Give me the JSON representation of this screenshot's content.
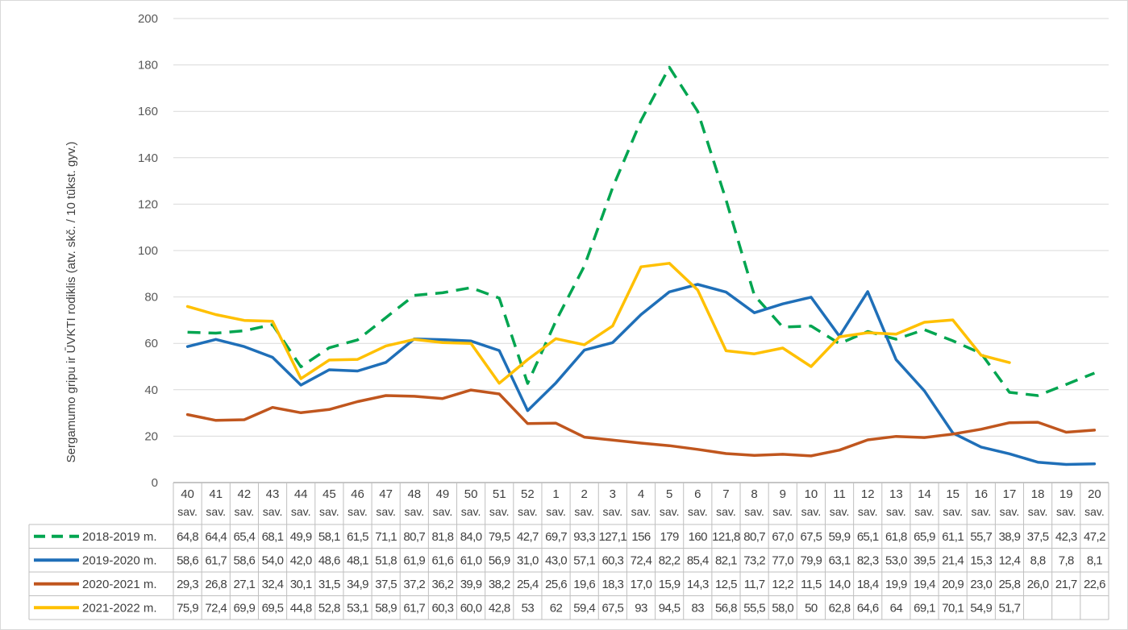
{
  "chart_data": {
    "type": "line",
    "title": "",
    "xlabel": "",
    "ylabel": "Sergamumo gripu ir ŪVKTI rodiklis (atv. skč. / 10 tūkst. gyv.)",
    "ylim": [
      0,
      200
    ],
    "yticks": [
      "0",
      "20",
      "40",
      "60",
      "80",
      "100",
      "120",
      "140",
      "160",
      "180",
      "200"
    ],
    "grid": true,
    "legend": "data-table",
    "week_suffix": "sav.",
    "categories": [
      "40",
      "41",
      "42",
      "43",
      "44",
      "45",
      "46",
      "47",
      "48",
      "49",
      "50",
      "51",
      "52",
      "1",
      "2",
      "3",
      "4",
      "5",
      "6",
      "7",
      "8",
      "9",
      "10",
      "11",
      "12",
      "13",
      "14",
      "15",
      "16",
      "17",
      "18",
      "19",
      "20"
    ],
    "series": [
      {
        "name": "2018-2019 m.",
        "color": "#00A550",
        "dash": "dashed",
        "values": [
          64.8,
          64.4,
          65.4,
          68.1,
          49.9,
          58.1,
          61.5,
          71.1,
          80.7,
          81.8,
          84.0,
          79.5,
          42.7,
          69.7,
          93.3,
          127.1,
          156,
          179,
          160,
          121.8,
          80.7,
          67.0,
          67.5,
          59.9,
          65.1,
          61.8,
          65.9,
          61.1,
          55.7,
          38.9,
          37.5,
          42.3,
          47.2
        ],
        "labels": [
          "64,8",
          "64,4",
          "65,4",
          "68,1",
          "49,9",
          "58,1",
          "61,5",
          "71,1",
          "80,7",
          "81,8",
          "84,0",
          "79,5",
          "42,7",
          "69,7",
          "93,3",
          "127,1",
          "156",
          "179",
          "160",
          "121,8",
          "80,7",
          "67,0",
          "67,5",
          "59,9",
          "65,1",
          "61,8",
          "65,9",
          "61,1",
          "55,7",
          "38,9",
          "37,5",
          "42,3",
          "47,2"
        ]
      },
      {
        "name": "2019-2020 m.",
        "color": "#1F6FB8",
        "dash": "solid",
        "values": [
          58.6,
          61.7,
          58.6,
          54.0,
          42.0,
          48.6,
          48.1,
          51.8,
          61.9,
          61.6,
          61.0,
          56.9,
          31.0,
          43.0,
          57.1,
          60.3,
          72.4,
          82.2,
          85.4,
          82.1,
          73.2,
          77.0,
          79.9,
          63.1,
          82.3,
          53.0,
          39.5,
          21.4,
          15.3,
          12.4,
          8.8,
          7.8,
          8.1
        ],
        "labels": [
          "58,6",
          "61,7",
          "58,6",
          "54,0",
          "42,0",
          "48,6",
          "48,1",
          "51,8",
          "61,9",
          "61,6",
          "61,0",
          "56,9",
          "31,0",
          "43,0",
          "57,1",
          "60,3",
          "72,4",
          "82,2",
          "85,4",
          "82,1",
          "73,2",
          "77,0",
          "79,9",
          "63,1",
          "82,3",
          "53,0",
          "39,5",
          "21,4",
          "15,3",
          "12,4",
          "8,8",
          "7,8",
          "8,1"
        ]
      },
      {
        "name": "2020-2021 m.",
        "color": "#C0561E",
        "dash": "solid",
        "values": [
          29.3,
          26.8,
          27.1,
          32.4,
          30.1,
          31.5,
          34.9,
          37.5,
          37.2,
          36.2,
          39.9,
          38.2,
          25.4,
          25.6,
          19.6,
          18.3,
          17.0,
          15.9,
          14.3,
          12.5,
          11.7,
          12.2,
          11.5,
          14.0,
          18.4,
          19.9,
          19.4,
          20.9,
          23.0,
          25.8,
          26.0,
          21.7,
          22.6
        ],
        "labels": [
          "29,3",
          "26,8",
          "27,1",
          "32,4",
          "30,1",
          "31,5",
          "34,9",
          "37,5",
          "37,2",
          "36,2",
          "39,9",
          "38,2",
          "25,4",
          "25,6",
          "19,6",
          "18,3",
          "17,0",
          "15,9",
          "14,3",
          "12,5",
          "11,7",
          "12,2",
          "11,5",
          "14,0",
          "18,4",
          "19,9",
          "19,4",
          "20,9",
          "23,0",
          "25,8",
          "26,0",
          "21,7",
          "22,6"
        ]
      },
      {
        "name": "2021-2022 m.",
        "color": "#FFC000",
        "dash": "solid",
        "values": [
          75.9,
          72.4,
          69.9,
          69.5,
          44.8,
          52.8,
          53.1,
          58.9,
          61.7,
          60.3,
          60.0,
          42.8,
          53,
          62,
          59.4,
          67.5,
          93,
          94.5,
          83,
          56.8,
          55.5,
          58.0,
          50,
          62.8,
          64.6,
          64,
          69.1,
          70.1,
          54.9,
          51.7,
          null,
          null,
          null
        ],
        "labels": [
          "75,9",
          "72,4",
          "69,9",
          "69,5",
          "44,8",
          "52,8",
          "53,1",
          "58,9",
          "61,7",
          "60,3",
          "60,0",
          "42,8",
          "53",
          "62",
          "59,4",
          "67,5",
          "93",
          "94,5",
          "83",
          "56,8",
          "55,5",
          "58,0",
          "50",
          "62,8",
          "64,6",
          "64",
          "69,1",
          "70,1",
          "54,9",
          "51,7",
          "",
          "",
          ""
        ]
      }
    ]
  }
}
